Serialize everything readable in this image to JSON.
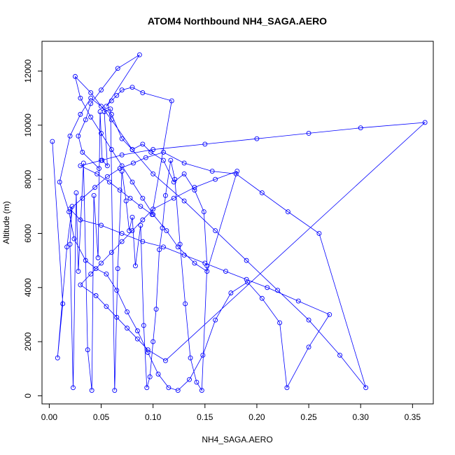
{
  "chart_data": {
    "type": "line",
    "title": "ATOM4 Northbound NH4_SAGA.AERO",
    "xlabel": "NH4_SAGA.AERO",
    "ylabel": "Altitude (m)",
    "xlim": [
      -0.007,
      0.37
    ],
    "ylim": [
      -300,
      13100
    ],
    "x_ticks": [
      0.0,
      0.05,
      0.1,
      0.15,
      0.2,
      0.25,
      0.3,
      0.35
    ],
    "x_tick_labels": [
      "0.00",
      "0.05",
      "0.10",
      "0.15",
      "0.20",
      "0.25",
      "0.30",
      "0.35"
    ],
    "y_ticks": [
      0,
      2000,
      4000,
      6000,
      8000,
      10000,
      12000
    ],
    "y_tick_labels": [
      "0",
      "2000",
      "4000",
      "6000",
      "8000",
      "10000",
      "12000"
    ],
    "series_color": "#0000ff",
    "marker": "open-circle",
    "series": [
      {
        "x": [
          0.003,
          0.013,
          0.008,
          0.017,
          0.022,
          0.02,
          0.023,
          0.026,
          0.028,
          0.033,
          0.037,
          0.041,
          0.043,
          0.047,
          0.049,
          0.051,
          0.056,
          0.053,
          0.059,
          0.063,
          0.066,
          0.07,
          0.074,
          0.077,
          0.08,
          0.083,
          0.088,
          0.091,
          0.094,
          0.097,
          0.1,
          0.103,
          0.106,
          0.109,
          0.112,
          0.117,
          0.121,
          0.126,
          0.131,
          0.136,
          0.142,
          0.147,
          0.152,
          0.149,
          0.14,
          0.13,
          0.12,
          0.11,
          0.098,
          0.09,
          0.08,
          0.07,
          0.06,
          0.05,
          0.04,
          0.03,
          0.02,
          0.01,
          0.019,
          0.024,
          0.035,
          0.045,
          0.055,
          0.065,
          0.075,
          0.085,
          0.095,
          0.105,
          0.115,
          0.124,
          0.135,
          0.148,
          0.16,
          0.175,
          0.191,
          0.205,
          0.222,
          0.229,
          0.25,
          0.27,
          0.24,
          0.21,
          0.19,
          0.17,
          0.15,
          0.13,
          0.11,
          0.09,
          0.07,
          0.05,
          0.03,
          0.02,
          0.032,
          0.044,
          0.056,
          0.068,
          0.081,
          0.093,
          0.11,
          0.13,
          0.157,
          0.18,
          0.205,
          0.23,
          0.26,
          0.305,
          0.28,
          0.25,
          0.22,
          0.19,
          0.16,
          0.13,
          0.1,
          0.08,
          0.06,
          0.04,
          0.025,
          0.03,
          0.04,
          0.05,
          0.06,
          0.07,
          0.08,
          0.09,
          0.1,
          0.113,
          0.124,
          0.14,
          0.152,
          0.181,
          0.16,
          0.14,
          0.12,
          0.1,
          0.09,
          0.08,
          0.07,
          0.06,
          0.05,
          0.04,
          0.03,
          0.045,
          0.055,
          0.065,
          0.075,
          0.085,
          0.095,
          0.112,
          0.362,
          0.3,
          0.25,
          0.2,
          0.15,
          0.1,
          0.07,
          0.05,
          0.03,
          0.046,
          0.058,
          0.068,
          0.078,
          0.088,
          0.099,
          0.118,
          0.09,
          0.08,
          0.07,
          0.065,
          0.06,
          0.055,
          0.087,
          0.066,
          0.05,
          0.04,
          0.035,
          0.028,
          0.032,
          0.048
        ],
        "y": [
          9400,
          3400,
          1400,
          5500,
          7000,
          5600,
          300,
          7500,
          4600,
          8600,
          1700,
          200,
          7400,
          5100,
          10500,
          8700,
          8500,
          10500,
          10600,
          200,
          4700,
          8300,
          7200,
          6100,
          6600,
          4800,
          6300,
          2600,
          300,
          700,
          2000,
          3200,
          5400,
          6200,
          7400,
          8700,
          8000,
          5600,
          3400,
          1400,
          500,
          200,
          4800,
          6800,
          7600,
          8200,
          7900,
          8700,
          9000,
          9300,
          9100,
          9500,
          10400,
          10700,
          11000,
          10400,
          9600,
          7900,
          6800,
          5800,
          5000,
          4700,
          4500,
          3900,
          3100,
          2400,
          1600,
          800,
          300,
          200,
          600,
          1500,
          2800,
          3800,
          4200,
          3600,
          2700,
          300,
          1800,
          3000,
          3500,
          4000,
          4300,
          4600,
          4900,
          5200,
          5500,
          5700,
          6000,
          6300,
          6500,
          6900,
          7300,
          7700,
          8100,
          8400,
          8600,
          8800,
          9000,
          8600,
          8300,
          8200,
          7500,
          6800,
          6000,
          300,
          1500,
          2800,
          3900,
          5000,
          6100,
          7200,
          8200,
          9100,
          10200,
          11200,
          11800,
          11000,
          10300,
          9700,
          9100,
          8500,
          7900,
          7300,
          6700,
          6100,
          5500,
          4900,
          4600,
          8300,
          8000,
          7700,
          7300,
          6900,
          6500,
          6100,
          5700,
          5300,
          4900,
          4500,
          4100,
          3700,
          3300,
          2900,
          2500,
          2100,
          1700,
          1300,
          10100,
          9900,
          9700,
          9500,
          9300,
          9100,
          8900,
          8700,
          8500,
          8200,
          7900,
          7600,
          7300,
          7000,
          6700,
          10900,
          11200,
          11400,
          11300,
          11100,
          10900,
          10700,
          12600,
          12100,
          11300,
          10800,
          10200,
          9600,
          9000,
          8400
        ]
      }
    ]
  }
}
